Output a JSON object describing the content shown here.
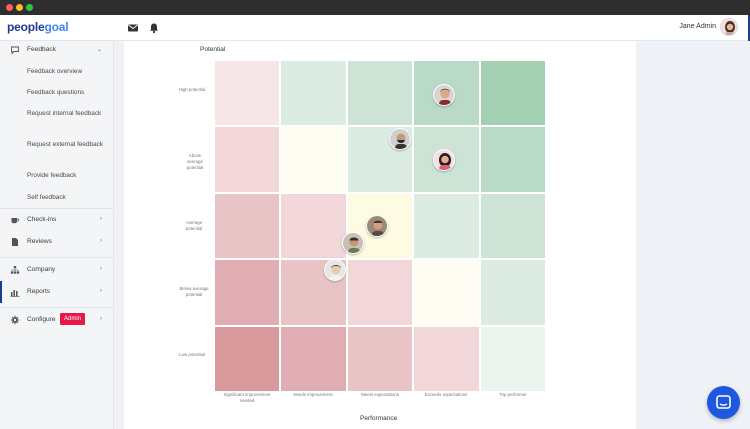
{
  "brand": {
    "logo_part1": "people",
    "logo_part2": "goal",
    "accent": "#1f3a93"
  },
  "topbar": {
    "user_name": "Jane Admin",
    "icons": [
      "mail-icon",
      "bell-icon"
    ]
  },
  "sidebar": {
    "feedback": {
      "label": "Feedback",
      "items": [
        "Feedback overview",
        "Feedback questions",
        "Request internal feedback",
        "Request external feedback",
        "Provide feedback",
        "Self feedback"
      ]
    },
    "checkins": "Check-ins",
    "reviews": "Reviews",
    "company": "Company",
    "reports": "Reports",
    "configure": "Configure",
    "admin_badge": "Admin"
  },
  "matrix": {
    "y_title": "Potential",
    "x_title": "Performance",
    "y_labels": [
      "High potential",
      "Above average potential",
      "Average potential",
      "Below average potential",
      "Low potential"
    ],
    "x_labels": [
      "Significant improvement needed",
      "Needs improvement",
      "Meets expectations",
      "Exceeds expectations",
      "Top performer"
    ]
  }
}
